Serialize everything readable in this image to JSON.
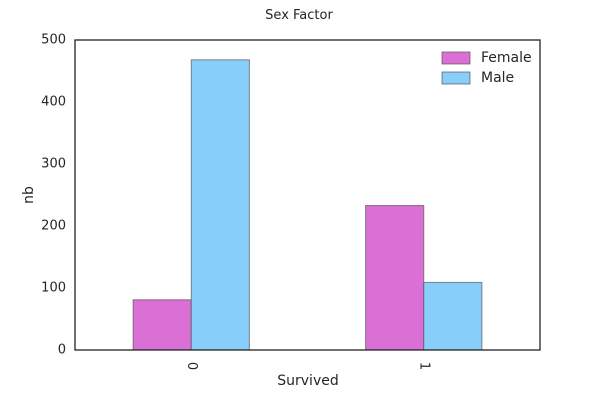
{
  "chart_data": {
    "type": "bar",
    "title": "Sex Factor",
    "xlabel": "Survived",
    "ylabel": "nb",
    "categories": [
      "0",
      "1"
    ],
    "series": [
      {
        "name": "Female",
        "values": [
          81,
          233
        ],
        "color": "#da70d6"
      },
      {
        "name": "Male",
        "values": [
          468,
          109
        ],
        "color": "#87cefa"
      }
    ],
    "ylim": [
      0,
      500
    ],
    "yticks": [
      0,
      100,
      200,
      300,
      400,
      500
    ],
    "grid": false,
    "legend_position": "top-right"
  }
}
